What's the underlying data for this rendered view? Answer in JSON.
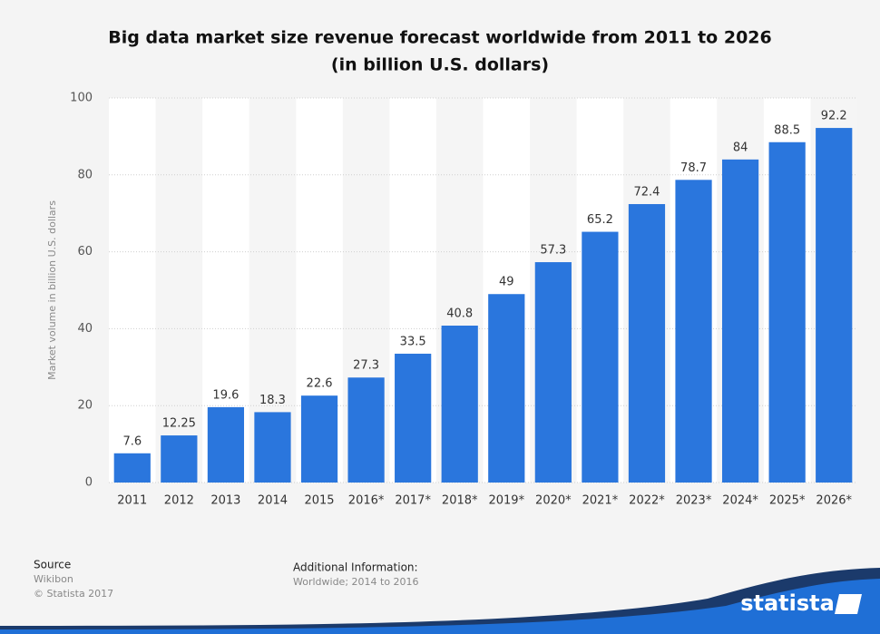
{
  "chart_data": {
    "type": "bar",
    "title": [
      "Big data market size revenue forecast worldwide from 2011 to 2026",
      "(in billion U.S. dollars)"
    ],
    "y_axis_label": "Market volume in billion U.S. dollars",
    "categories": [
      "2011",
      "2012",
      "2013",
      "2014",
      "2015",
      "2016*",
      "2017*",
      "2018*",
      "2019*",
      "2020*",
      "2021*",
      "2022*",
      "2023*",
      "2024*",
      "2025*",
      "2026*"
    ],
    "values": [
      7.6,
      12.25,
      19.6,
      18.3,
      22.6,
      27.3,
      33.5,
      40.8,
      49,
      57.3,
      65.2,
      72.4,
      78.7,
      84,
      88.5,
      92.2
    ],
    "color": "#2a76dd",
    "ylim": [
      0,
      100
    ],
    "yticks": [
      0,
      20,
      40,
      60,
      80,
      100
    ],
    "grid": true
  },
  "footer": {
    "source_heading": "Source",
    "source": "Wikibon",
    "copyright": "© Statista 2017",
    "info_heading": "Additional Information:",
    "info": "Worldwide; 2014 to 2016",
    "logo": "statista"
  }
}
